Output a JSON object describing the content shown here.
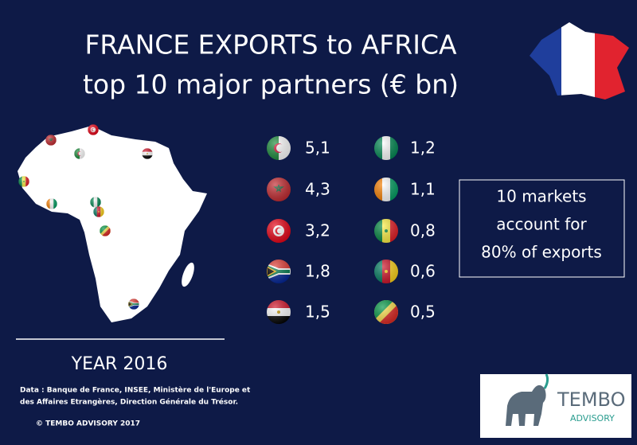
{
  "header": {
    "title_line1": "FRANCE EXPORTS to AFRICA",
    "title_line2": "top 10 major partners (€ bn)"
  },
  "partners": {
    "values": [
      "5,1",
      "4,3",
      "3,2",
      "1,8",
      "1,5",
      "1,2",
      "1,1",
      "0,8",
      "0,6",
      "0,5"
    ]
  },
  "callout": {
    "lines": [
      "10 markets",
      "account for",
      "80% of exports"
    ]
  },
  "footer": {
    "year": "YEAR 2016",
    "source_lines": [
      "Data : Banque de France, INSEE, Ministère de l'Europe et",
      "des Affaires Etrangères, Direction Générale du Trésor."
    ],
    "copyright": "©  TEMBO ADVISORY  2017"
  },
  "logo": {
    "name": "TEMBO",
    "tagline": "ADVISORY"
  }
}
